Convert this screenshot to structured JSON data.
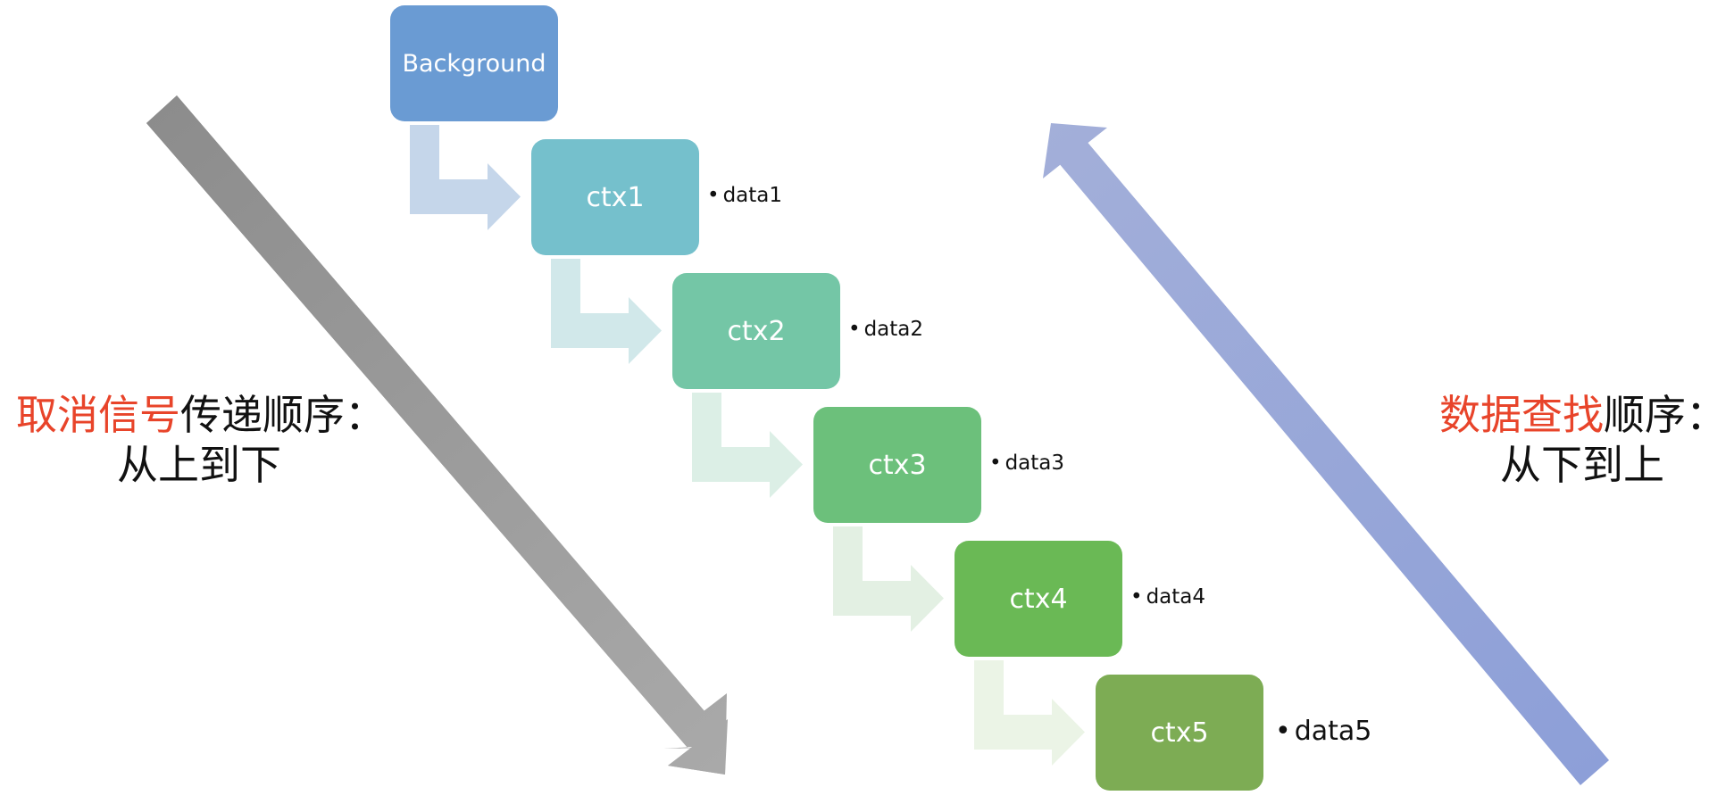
{
  "colors": {
    "background_box": "#6a9bd3",
    "ctx1": "#75c0cc",
    "ctx2": "#74c6a6",
    "ctx3": "#6cc07b",
    "ctx4": "#6ab955",
    "ctx5": "#7dac54",
    "highlight": "#e8442a",
    "down_arrow": "#9a9a9a",
    "up_arrow": "#97a6d8"
  },
  "nodes": [
    {
      "label": "Background"
    },
    {
      "label": "ctx1",
      "data": "data1"
    },
    {
      "label": "ctx2",
      "data": "data2"
    },
    {
      "label": "ctx3",
      "data": "data3"
    },
    {
      "label": "ctx4",
      "data": "data4"
    },
    {
      "label": "ctx5",
      "data": "data5"
    }
  ],
  "bullet_glyph": "•",
  "left_label": {
    "highlight": "取消信号",
    "rest": "传递顺序：",
    "line2": "从上到下"
  },
  "right_label": {
    "highlight": "数据查找",
    "rest": "顺序：",
    "line2": "从下到上"
  },
  "arrows": {
    "down_icon": "down-right-arrow-icon",
    "up_icon": "up-left-arrow-icon"
  }
}
